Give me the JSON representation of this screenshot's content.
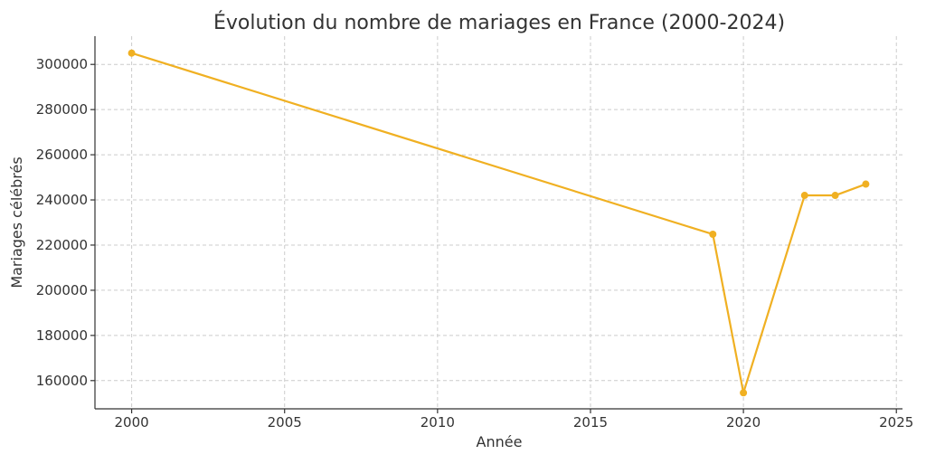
{
  "chart_data": {
    "type": "line",
    "title": "Évolution du nombre de mariages en France (2000-2024)",
    "xlabel": "Année",
    "ylabel": "Mariages célébrés",
    "xlim": [
      1998.8,
      2025.2
    ],
    "ylim": [
      147500,
      312500
    ],
    "xticks": [
      2000,
      2005,
      2010,
      2015,
      2020,
      2025
    ],
    "yticks": [
      160000,
      180000,
      200000,
      220000,
      240000,
      260000,
      280000,
      300000
    ],
    "grid": true,
    "series": [
      {
        "x": [
          2000,
          2019,
          2020,
          2022,
          2023,
          2024
        ],
        "y": [
          305000,
          224800,
          154600,
          242000,
          242000,
          247000
        ],
        "color": "#f0b022"
      }
    ]
  }
}
